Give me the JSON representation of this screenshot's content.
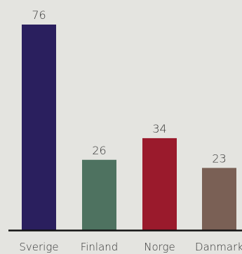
{
  "chart_data": {
    "type": "bar",
    "title": "",
    "xlabel": "",
    "ylabel": "",
    "categories": [
      "Sverige",
      "Finland",
      "Norge",
      "Danmark"
    ],
    "values": [
      76,
      26,
      34,
      23
    ],
    "ylim": [
      0,
      76
    ],
    "grid": false,
    "colors": [
      "#2a1f5e",
      "#4e7260",
      "#9a1a2c",
      "#7a6055"
    ],
    "axis_color": "#111111",
    "background": "#e4e4e0"
  }
}
